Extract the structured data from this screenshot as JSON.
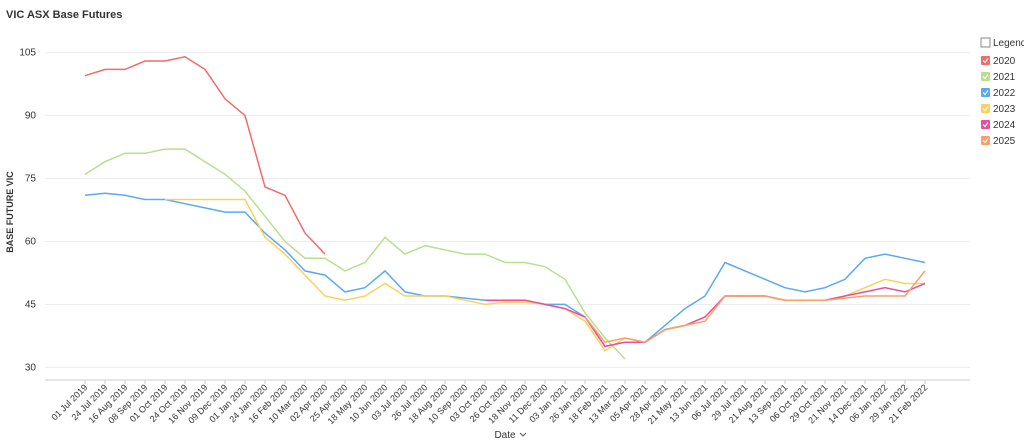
{
  "chart_data": {
    "type": "line",
    "title": "VIC ASX Base Futures",
    "y_label": "BASE FUTURE VIC",
    "x_label": "Date",
    "legend_title": "Legend",
    "legend_position": "right",
    "categories": [
      "01 Jul 2019",
      "24 Jul 2019",
      "16 Aug 2019",
      "08 Sep 2019",
      "01 Oct 2019",
      "24 Oct 2019",
      "16 Nov 2019",
      "09 Dec 2019",
      "01 Jan 2020",
      "24 Jan 2020",
      "16 Feb 2020",
      "10 Mar 2020",
      "02 Apr 2020",
      "25 Apr 2020",
      "18 May 2020",
      "10 Jun 2020",
      "03 Jul 2020",
      "26 Jul 2020",
      "18 Aug 2020",
      "10 Sep 2020",
      "03 Oct 2020",
      "26 Oct 2020",
      "18 Nov 2020",
      "11 Dec 2020",
      "03 Jan 2021",
      "26 Jan 2021",
      "18 Feb 2021",
      "13 Mar 2021",
      "05 Apr 2021",
      "28 Apr 2021",
      "21 May 2021",
      "13 Jun 2021",
      "06 Jul 2021",
      "29 Jul 2021",
      "21 Aug 2021",
      "13 Sep 2021",
      "06 Oct 2021",
      "29 Oct 2021",
      "21 Nov 2021",
      "14 Dec 2021",
      "06 Jan 2022",
      "29 Jan 2022",
      "21 Feb 2022"
    ],
    "ylim": [
      27,
      108
    ],
    "yticks": [
      30,
      45,
      60,
      75,
      90,
      105
    ],
    "grid": true,
    "series": [
      {
        "name": "2020",
        "color": "#f26b6b",
        "values": [
          99.5,
          101,
          101,
          103,
          103,
          104,
          101,
          94,
          90,
          73,
          71,
          62,
          57,
          null,
          null,
          null,
          null,
          null,
          null,
          null,
          null,
          null,
          null,
          null,
          null,
          null,
          null,
          null,
          null,
          null,
          null,
          null,
          null,
          null,
          null,
          null,
          null,
          null,
          null,
          null,
          null,
          null,
          null
        ]
      },
      {
        "name": "2021",
        "color": "#b8e08e",
        "values": [
          76,
          79,
          81,
          81,
          82,
          82,
          79,
          76,
          72,
          66,
          60,
          56,
          56,
          53,
          55,
          61,
          57,
          59,
          58,
          57,
          57,
          55,
          55,
          54,
          51,
          43,
          37,
          32,
          null,
          null,
          null,
          null,
          null,
          null,
          null,
          null,
          null,
          null,
          null,
          null,
          null,
          null,
          null
        ]
      },
      {
        "name": "2022",
        "color": "#5aa9f2",
        "values": [
          71,
          71.5,
          71,
          70,
          70,
          69,
          68,
          67,
          67,
          62,
          58,
          53,
          52,
          48,
          49,
          53,
          48,
          47,
          47,
          46.5,
          46,
          46,
          46,
          45,
          45,
          42,
          35,
          36,
          36,
          40,
          44,
          47,
          55,
          53,
          51,
          49,
          48,
          49,
          51,
          56,
          57,
          56,
          55
        ]
      },
      {
        "name": "2023",
        "color": "#fcd15a",
        "values": [
          null,
          null,
          null,
          null,
          70,
          70,
          70,
          70,
          70,
          61,
          57,
          52,
          47,
          46,
          47,
          50,
          47,
          47,
          47,
          46,
          45,
          45.5,
          45.5,
          45,
          44,
          41,
          34,
          37,
          36,
          39,
          40,
          42,
          47,
          47,
          47,
          46,
          46,
          46,
          47,
          49,
          51,
          50,
          50
        ]
      },
      {
        "name": "2024",
        "color": "#e84fa0",
        "values": [
          null,
          null,
          null,
          null,
          null,
          null,
          null,
          null,
          null,
          null,
          null,
          null,
          null,
          null,
          null,
          null,
          null,
          null,
          null,
          null,
          46,
          46,
          46,
          45,
          44,
          42,
          35,
          36,
          36,
          39,
          40,
          42,
          47,
          47,
          47,
          46,
          46,
          46,
          47,
          48,
          49,
          48,
          50
        ]
      },
      {
        "name": "2025",
        "color": "#f9a068",
        "values": [
          null,
          null,
          null,
          null,
          null,
          null,
          null,
          null,
          null,
          null,
          null,
          null,
          null,
          null,
          null,
          null,
          null,
          null,
          null,
          null,
          null,
          null,
          null,
          null,
          null,
          42,
          36,
          37,
          36,
          39,
          40,
          41,
          47,
          47,
          47,
          46,
          46,
          46,
          46.5,
          47,
          47,
          47,
          53
        ]
      }
    ]
  }
}
